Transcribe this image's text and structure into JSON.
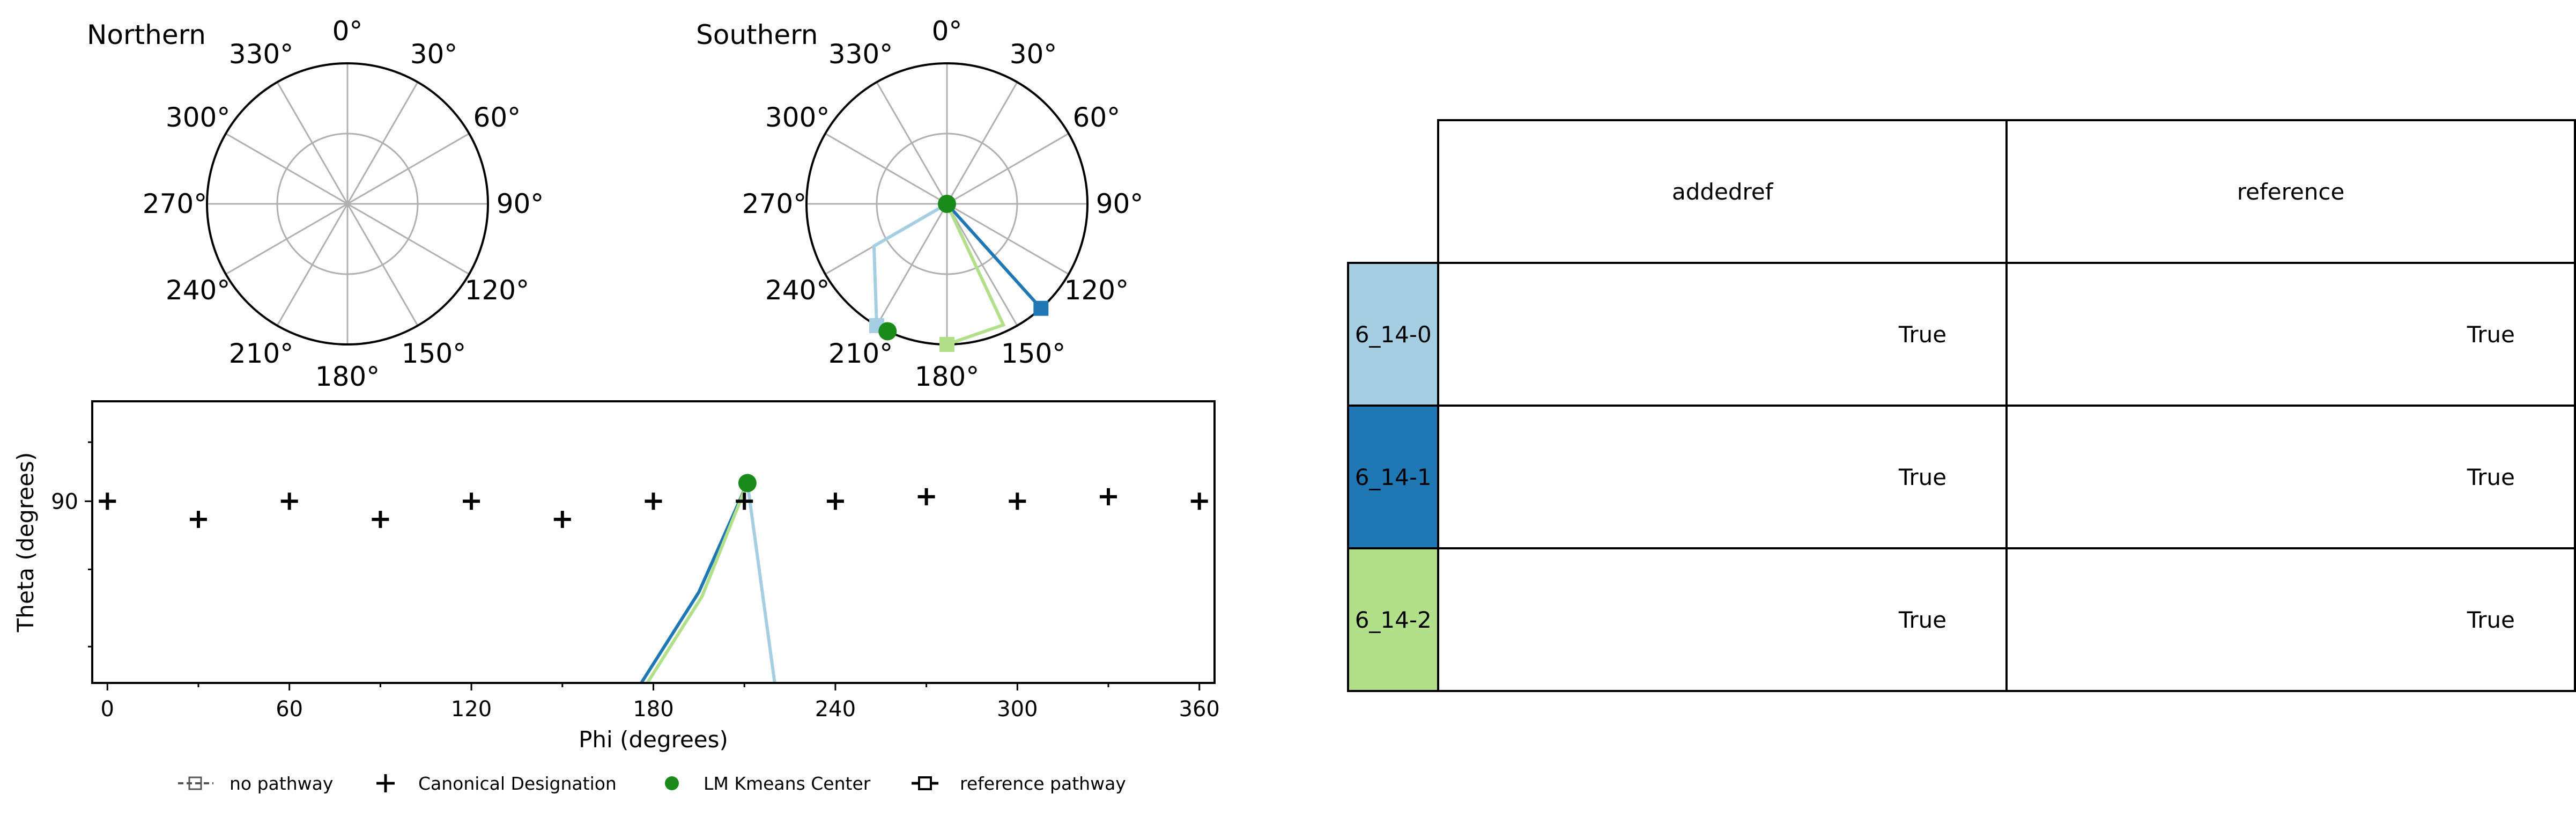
{
  "panels": {
    "northern_title": "Northern",
    "southern_title": "Southern",
    "polar_angle_labels": [
      "0°",
      "30°",
      "60°",
      "90°",
      "120°",
      "150°",
      "180°",
      "210°",
      "240°",
      "270°",
      "300°",
      "330°"
    ]
  },
  "chart_data": [
    {
      "type": "polar",
      "title": "Northern",
      "theta_ticks_deg": [
        0,
        30,
        60,
        90,
        120,
        150,
        180,
        210,
        240,
        270,
        300,
        330
      ],
      "series": []
    },
    {
      "type": "polar",
      "title": "Southern",
      "theta_ticks_deg": [
        0,
        30,
        60,
        90,
        120,
        150,
        180,
        210,
        240,
        270,
        300,
        330
      ],
      "series": [
        {
          "name": "6_14-0",
          "color": "#a6cee3",
          "points": [
            [
              0,
              0
            ],
            [
              240,
              0.6
            ],
            [
              210,
              1.0
            ]
          ]
        },
        {
          "name": "6_14-1",
          "color": "#1f78b4",
          "points": [
            [
              0,
              0
            ],
            [
              138,
              1.0
            ]
          ]
        },
        {
          "name": "6_14-2",
          "color": "#b2df8a",
          "points": [
            [
              0,
              0
            ],
            [
              155,
              0.95
            ],
            [
              180,
              1.0
            ]
          ]
        }
      ],
      "kmeans_centers": [
        [
          0,
          0
        ],
        [
          205,
          1.0
        ]
      ]
    },
    {
      "type": "scatter",
      "xlabel": "Phi (degrees)",
      "ylabel": "Theta (degrees)",
      "xlim": [
        -5,
        365
      ],
      "ylim": [
        50,
        112
      ],
      "xticks": [
        0,
        60,
        120,
        180,
        240,
        300,
        360
      ],
      "yticks": [
        90
      ],
      "canonical_designation": [
        [
          0,
          90
        ],
        [
          30,
          86
        ],
        [
          60,
          90
        ],
        [
          90,
          86
        ],
        [
          120,
          90
        ],
        [
          150,
          86
        ],
        [
          180,
          90
        ],
        [
          210,
          90
        ],
        [
          240,
          90
        ],
        [
          270,
          91
        ],
        [
          300,
          90
        ],
        [
          330,
          91
        ],
        [
          360,
          90
        ]
      ],
      "kmeans_center": [
        211,
        94
      ],
      "series": [
        {
          "name": "6_14-0",
          "color": "#a6cee3",
          "points": [
            [
              211,
              94
            ],
            [
              220,
              50
            ]
          ]
        },
        {
          "name": "6_14-1",
          "color": "#1f78b4",
          "points": [
            [
              211,
              94
            ],
            [
              195,
              70
            ],
            [
              176,
              50
            ]
          ]
        },
        {
          "name": "6_14-2",
          "color": "#b2df8a",
          "points": [
            [
              211,
              94
            ],
            [
              196,
              69
            ],
            [
              178,
              50
            ]
          ]
        }
      ]
    }
  ],
  "legend": {
    "no_pathway": "no pathway",
    "canonical": "Canonical Designation",
    "kmeans": "LM Kmeans Center",
    "reference": "reference pathway"
  },
  "table": {
    "columns": [
      "addedref",
      "reference"
    ],
    "rows": [
      {
        "label": "6_14-0",
        "color": "#a6cee3",
        "addedref": "True",
        "reference": "True"
      },
      {
        "label": "6_14-1",
        "color": "#1f78b4",
        "addedref": "True",
        "reference": "True"
      },
      {
        "label": "6_14-2",
        "color": "#b2df8a",
        "addedref": "True",
        "reference": "True"
      }
    ]
  }
}
